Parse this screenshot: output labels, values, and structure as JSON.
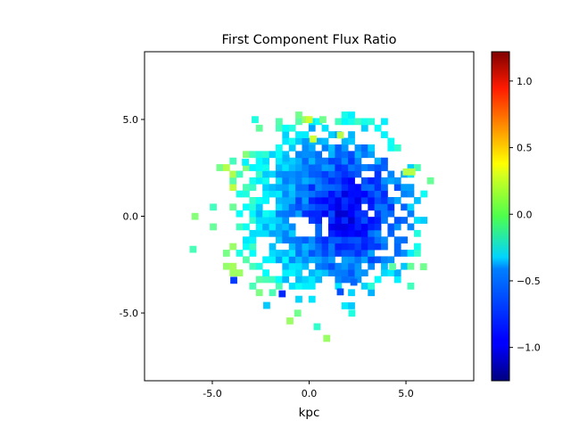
{
  "chart_data": {
    "type": "heatmap",
    "title": "First Component Flux Ratio",
    "xlabel": "kpc",
    "ylabel": "",
    "xlim": [
      -8.5,
      8.5
    ],
    "ylim": [
      -8.5,
      8.5
    ],
    "x_ticks": [
      -5.0,
      0.0,
      5.0
    ],
    "x_tick_labels": [
      "-5.0",
      "0.0",
      "5.0"
    ],
    "y_ticks": [
      -5.0,
      0.0,
      5.0
    ],
    "y_tick_labels": [
      "-5.0",
      "0.0",
      "5.0"
    ],
    "colormap": "jet",
    "colorbar": {
      "range": [
        -1.25,
        1.22
      ],
      "ticks": [
        -1.0,
        -0.5,
        0.0,
        0.5,
        1.0
      ],
      "tick_labels": [
        "−1.0",
        "−0.5",
        "0.0",
        "0.5",
        "1.0"
      ]
    },
    "grid": false,
    "pixel_size": 0.34,
    "value_summary": {
      "outer_ring_value": -0.35,
      "inner_core_value": -1.0,
      "core_center_x": 2.0,
      "core_center_y": 0.3,
      "valid_region_radius": 6.2,
      "valid_region_center": [
        0.8,
        0.3
      ]
    },
    "pixels": [
      {
        "x": -2.8,
        "y": 5.0,
        "value": -0.25
      },
      {
        "x": -0.2,
        "y": 5.0,
        "value": 0.05
      },
      {
        "x": 0.0,
        "y": 5.0,
        "value": 0.18
      },
      {
        "x": 0.7,
        "y": 5.0,
        "value": -0.05
      },
      {
        "x": 0.2,
        "y": 4.0,
        "value": 0.18
      },
      {
        "x": 1.6,
        "y": 4.2,
        "value": 0.12
      },
      {
        "x": 5.0,
        "y": 2.3,
        "value": 0.12
      },
      {
        "x": 5.3,
        "y": 2.3,
        "value": 0.12
      },
      {
        "x": -5.9,
        "y": 0.0,
        "value": 0.0
      },
      {
        "x": -6.0,
        "y": -1.7,
        "value": -0.15
      },
      {
        "x": 4.3,
        "y": -2.6,
        "value": -0.1
      },
      {
        "x": 5.9,
        "y": -2.6,
        "value": -0.05
      },
      {
        "x": -0.6,
        "y": -5.0,
        "value": -0.05
      },
      {
        "x": -1.0,
        "y": -5.4,
        "value": 0.05
      },
      {
        "x": 0.9,
        "y": -6.3,
        "value": 0.05
      },
      {
        "x": 0.4,
        "y": -5.7,
        "value": -0.2
      },
      {
        "x": 2.2,
        "y": -5.0,
        "value": -0.25
      },
      {
        "x": -2.2,
        "y": -4.6,
        "value": -0.45
      },
      {
        "x": -1.4,
        "y": -4.0,
        "value": -0.85
      },
      {
        "x": 1.6,
        "y": -3.9,
        "value": -0.75
      },
      {
        "x": 2.3,
        "y": -3.4,
        "value": -0.7
      },
      {
        "x": -3.9,
        "y": -3.3,
        "value": -0.8
      },
      {
        "x": -1.2,
        "y": 3.0,
        "value": -0.5
      },
      {
        "x": -3.3,
        "y": 2.8,
        "value": -0.35
      }
    ]
  }
}
